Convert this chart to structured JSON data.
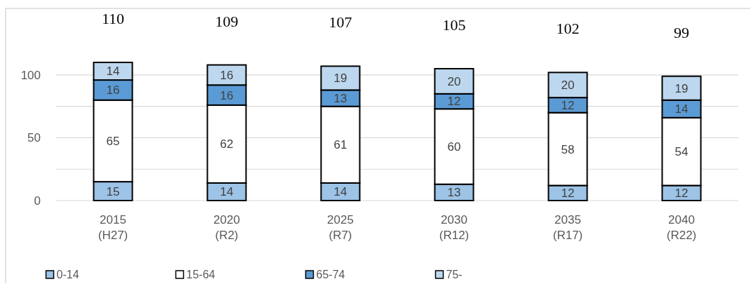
{
  "chart_data": {
    "type": "bar",
    "stacked": true,
    "categories": [
      "2015\n(H27)",
      "2020\n(R2)",
      "2025\n(R7)",
      "2030\n(R12)",
      "2035\n(R17)",
      "2040\n(R22)"
    ],
    "series": [
      {
        "name": "0-14",
        "color": "#9dc3e6",
        "values": [
          15,
          14,
          14,
          13,
          12,
          12
        ]
      },
      {
        "name": "15-64",
        "color": "#ffffff",
        "values": [
          65,
          62,
          61,
          60,
          58,
          54
        ]
      },
      {
        "name": "65-74",
        "color": "#5b9bd5",
        "values": [
          16,
          16,
          13,
          12,
          12,
          14
        ]
      },
      {
        "name": "75-",
        "color": "#bdd7ee",
        "values": [
          14,
          16,
          19,
          20,
          20,
          19
        ]
      }
    ],
    "totals": [
      "110",
      "109",
      "107",
      "105",
      "102",
      "99"
    ],
    "data_labels": true,
    "ylim": [
      0,
      153
    ],
    "yticks": [
      0,
      {
        "value": 25,
        "label": null
      },
      50,
      {
        "value": 75,
        "label": null
      },
      100
    ],
    "grid": "y",
    "legend": "bottom"
  }
}
